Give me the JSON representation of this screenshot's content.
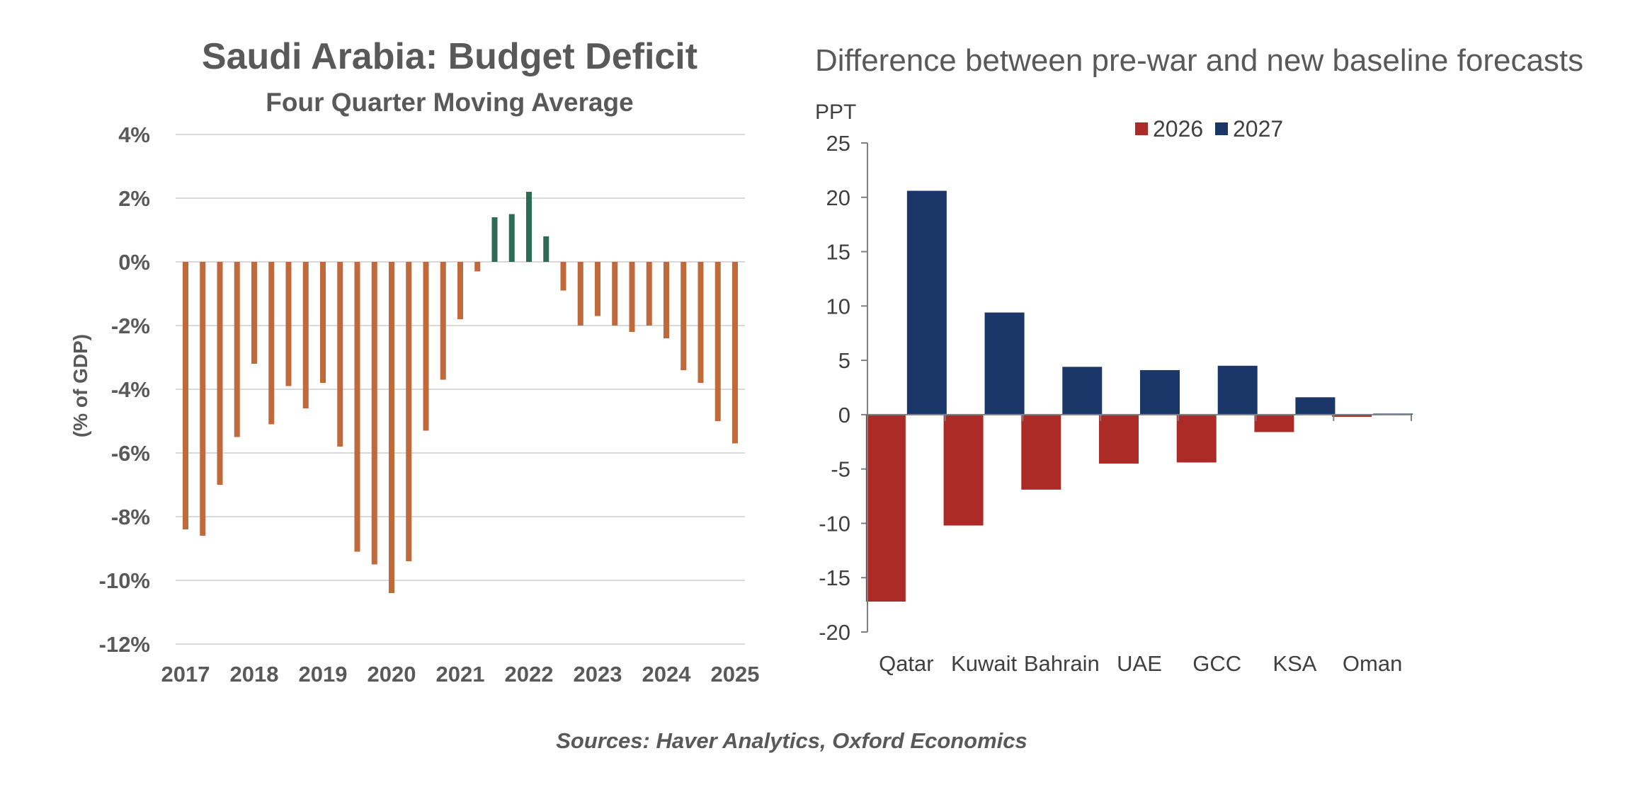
{
  "source_note": "Sources: Haver Analytics, Oxford Economics",
  "colors": {
    "deficit": "#c0693a",
    "surplus": "#2e6b55",
    "series_2026": "#ad2b27",
    "series_2027": "#1b3668",
    "grid": "#d9d9d9",
    "axis": "#7f7f7f"
  },
  "chart_data": [
    {
      "type": "bar",
      "title": "Saudi Arabia: Budget Deficit",
      "subtitle": "Four Quarter Moving Average",
      "ylabel": "(% of GDP)",
      "ylim": [
        -12,
        4
      ],
      "yticks": [
        4,
        2,
        0,
        -2,
        -4,
        -6,
        -8,
        -10,
        -12
      ],
      "ytick_labels": [
        "4%",
        "2%",
        "0%",
        "-2%",
        "-4%",
        "-6%",
        "-8%",
        "-10%",
        "-12%"
      ],
      "x_labels": [
        "2017",
        "2018",
        "2019",
        "2020",
        "2021",
        "2022",
        "2023",
        "2024",
        "2025"
      ],
      "x_start": 2017,
      "x_end": 2025,
      "grid": true,
      "series": [
        {
          "x": [
            2017.0,
            2017.25,
            2017.5,
            2017.75,
            2018.0,
            2018.25,
            2018.5,
            2018.75,
            2019.0,
            2019.25,
            2019.5,
            2019.75,
            2020.0,
            2020.25,
            2020.5,
            2020.75,
            2021.0,
            2021.25,
            2021.5,
            2021.75,
            2022.0,
            2022.25,
            2022.5,
            2022.75,
            2023.0,
            2023.25,
            2023.5,
            2023.75,
            2024.0,
            2024.25,
            2024.5,
            2024.75,
            2025.0
          ],
          "values": [
            -8.4,
            -8.6,
            -7.0,
            -5.5,
            -3.2,
            -5.1,
            -3.9,
            -4.6,
            -3.8,
            -5.8,
            -9.1,
            -9.5,
            -10.4,
            -9.4,
            -5.3,
            -3.7,
            -1.8,
            -0.3,
            1.4,
            1.5,
            2.2,
            0.8,
            -0.9,
            -2.0,
            -1.7,
            -2.0,
            -2.2,
            -2.0,
            -2.4,
            -3.4,
            -3.8,
            -5.0,
            -5.7
          ]
        }
      ]
    },
    {
      "type": "bar",
      "title": "Difference between pre-war and new baseline forecasts",
      "ylabel": "PPT",
      "ylim": [
        -20,
        25
      ],
      "yticks": [
        25,
        20,
        15,
        10,
        5,
        0,
        -5,
        -10,
        -15,
        -20
      ],
      "categories": [
        "Qatar",
        "Kuwait",
        "Bahrain",
        "UAE",
        "GCC",
        "KSA",
        "Oman"
      ],
      "legend_position": "top",
      "series": [
        {
          "name": "2026",
          "values": [
            -17.2,
            -10.2,
            -6.9,
            -4.5,
            -4.4,
            -1.6,
            -0.2
          ]
        },
        {
          "name": "2027",
          "values": [
            20.6,
            9.4,
            4.4,
            4.1,
            4.5,
            1.6,
            0.1
          ]
        }
      ]
    }
  ]
}
